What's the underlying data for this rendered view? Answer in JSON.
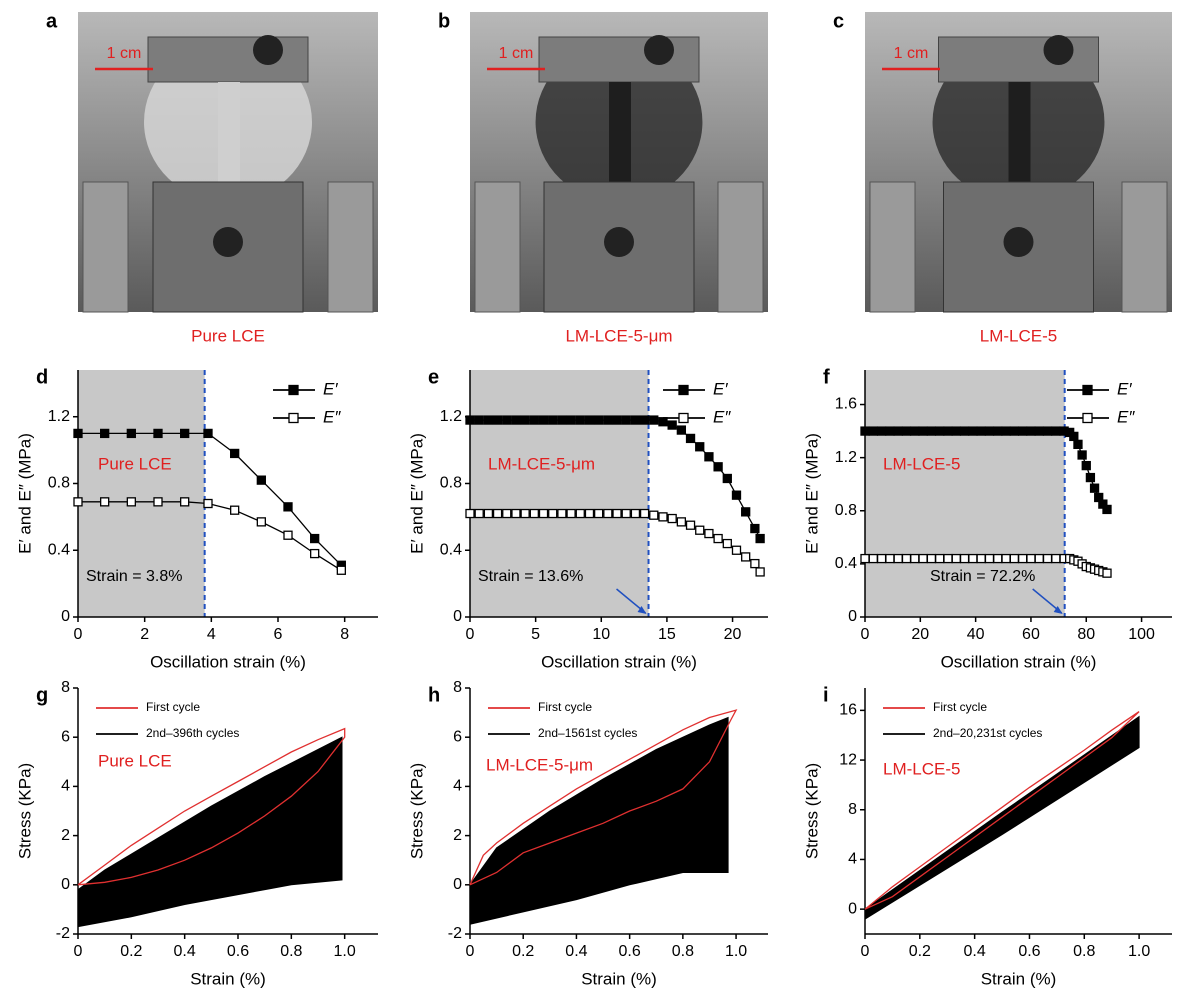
{
  "photos": [
    {
      "panel_label": "a",
      "scale_bar": "1 cm",
      "caption": "Pure LCE"
    },
    {
      "panel_label": "b",
      "scale_bar": "1 cm",
      "caption": "LM-LCE-5-μm"
    },
    {
      "panel_label": "c",
      "scale_bar": "1 cm",
      "caption": "LM-LCE-5"
    }
  ],
  "chart_data": [
    {
      "type": "line",
      "panel_label": "d",
      "xlabel": "Oscillation strain (%)",
      "ylabel": "E′ and E″ (MPa)",
      "xlim": [
        0,
        9
      ],
      "ylim": [
        0,
        1.48
      ],
      "xticks": [
        0,
        2,
        4,
        6,
        8
      ],
      "yticks": [
        0,
        0.4,
        0.8,
        1.2
      ],
      "threshold": 3.8,
      "sample_label": "Pure LCE",
      "strain_label": "Strain = 3.8%",
      "legend": "upper right",
      "series": [
        {
          "name": "E′",
          "color": "#000000",
          "marker": "filled",
          "x": [
            0,
            0.8,
            1.6,
            2.4,
            3.2,
            3.9,
            4.7,
            5.5,
            6.3,
            7.1,
            7.9
          ],
          "values": [
            1.1,
            1.1,
            1.1,
            1.1,
            1.1,
            1.1,
            0.98,
            0.82,
            0.66,
            0.47,
            0.31
          ]
        },
        {
          "name": "E″",
          "color": "#000000",
          "marker": "open",
          "x": [
            0,
            0.8,
            1.6,
            2.4,
            3.2,
            3.9,
            4.7,
            5.5,
            6.3,
            7.1,
            7.9
          ],
          "values": [
            0.69,
            0.69,
            0.69,
            0.69,
            0.69,
            0.68,
            0.64,
            0.57,
            0.49,
            0.38,
            0.28
          ]
        }
      ]
    },
    {
      "type": "line",
      "panel_label": "e",
      "xlabel": "Oscillation strain (%)",
      "ylabel": "E′ and E″ (MPa)",
      "xlim": [
        0,
        22.7
      ],
      "ylim": [
        0,
        1.48
      ],
      "xticks": [
        0,
        5,
        10,
        15,
        20
      ],
      "yticks": [
        0,
        0.4,
        0.8,
        1.2
      ],
      "threshold": 13.6,
      "sample_label": "LM-LCE-5-μm",
      "strain_label": "Strain = 13.6%",
      "legend": "upper right",
      "series": [
        {
          "name": "E′",
          "color": "#000000",
          "marker": "filled",
          "x": [
            0,
            0.7,
            1.4,
            2.1,
            2.8,
            3.5,
            4.2,
            4.9,
            5.6,
            6.3,
            7.0,
            7.7,
            8.4,
            9.1,
            9.8,
            10.5,
            11.2,
            11.9,
            12.6,
            13.3,
            14.0,
            14.7,
            15.4,
            16.1,
            16.8,
            17.5,
            18.2,
            18.9,
            19.6,
            20.3,
            21.0,
            21.7,
            22.1
          ],
          "values": [
            1.18,
            1.18,
            1.18,
            1.18,
            1.18,
            1.18,
            1.18,
            1.18,
            1.18,
            1.18,
            1.18,
            1.18,
            1.18,
            1.18,
            1.18,
            1.18,
            1.18,
            1.18,
            1.18,
            1.18,
            1.18,
            1.17,
            1.15,
            1.12,
            1.07,
            1.02,
            0.96,
            0.9,
            0.83,
            0.73,
            0.63,
            0.53,
            0.47
          ]
        },
        {
          "name": "E″",
          "color": "#000000",
          "marker": "open",
          "x": [
            0,
            0.7,
            1.4,
            2.1,
            2.8,
            3.5,
            4.2,
            4.9,
            5.6,
            6.3,
            7.0,
            7.7,
            8.4,
            9.1,
            9.8,
            10.5,
            11.2,
            11.9,
            12.6,
            13.3,
            14.0,
            14.7,
            15.4,
            16.1,
            16.8,
            17.5,
            18.2,
            18.9,
            19.6,
            20.3,
            21.0,
            21.7,
            22.1
          ],
          "values": [
            0.62,
            0.62,
            0.62,
            0.62,
            0.62,
            0.62,
            0.62,
            0.62,
            0.62,
            0.62,
            0.62,
            0.62,
            0.62,
            0.62,
            0.62,
            0.62,
            0.62,
            0.62,
            0.62,
            0.62,
            0.61,
            0.6,
            0.59,
            0.57,
            0.55,
            0.52,
            0.5,
            0.47,
            0.44,
            0.4,
            0.36,
            0.32,
            0.27
          ]
        }
      ]
    },
    {
      "type": "line",
      "panel_label": "f",
      "xlabel": "Oscillation strain (%)",
      "ylabel": "E′ and E″ (MPa)",
      "xlim": [
        0,
        111
      ],
      "ylim": [
        0,
        1.86
      ],
      "xticks": [
        0,
        20,
        40,
        60,
        80,
        100
      ],
      "yticks": [
        0,
        0.4,
        0.8,
        1.2,
        1.6
      ],
      "threshold": 72.2,
      "sample_label": "LM-LCE-5",
      "strain_label": "Strain = 72.2%",
      "legend": "upper right",
      "series": [
        {
          "name": "E′",
          "color": "#000000",
          "marker": "filled",
          "x": [
            0,
            3,
            6,
            9,
            12,
            15,
            18,
            21,
            24,
            27,
            30,
            33,
            36,
            39,
            42,
            45,
            48,
            51,
            54,
            57,
            60,
            63,
            66,
            69,
            72,
            74,
            75.5,
            77,
            78.5,
            80,
            81.5,
            83,
            84.5,
            86,
            87.5
          ],
          "values": [
            1.4,
            1.4,
            1.4,
            1.4,
            1.4,
            1.4,
            1.4,
            1.4,
            1.4,
            1.4,
            1.4,
            1.4,
            1.4,
            1.4,
            1.4,
            1.4,
            1.4,
            1.4,
            1.4,
            1.4,
            1.4,
            1.4,
            1.4,
            1.4,
            1.4,
            1.39,
            1.36,
            1.3,
            1.22,
            1.14,
            1.05,
            0.97,
            0.9,
            0.85,
            0.81
          ]
        },
        {
          "name": "E″",
          "color": "#000000",
          "marker": "open",
          "x": [
            0,
            3,
            6,
            9,
            12,
            15,
            18,
            21,
            24,
            27,
            30,
            33,
            36,
            39,
            42,
            45,
            48,
            51,
            54,
            57,
            60,
            63,
            66,
            69,
            72,
            74,
            75.5,
            77,
            78.5,
            80,
            81.5,
            83,
            84.5,
            86,
            87.5
          ],
          "values": [
            0.44,
            0.44,
            0.44,
            0.44,
            0.44,
            0.44,
            0.44,
            0.44,
            0.44,
            0.44,
            0.44,
            0.44,
            0.44,
            0.44,
            0.44,
            0.44,
            0.44,
            0.44,
            0.44,
            0.44,
            0.44,
            0.44,
            0.44,
            0.44,
            0.44,
            0.44,
            0.43,
            0.42,
            0.4,
            0.38,
            0.37,
            0.36,
            0.35,
            0.34,
            0.33
          ]
        }
      ]
    },
    {
      "type": "line",
      "panel_label": "g",
      "xlabel": "Strain (%)",
      "ylabel": "Stress (KPa)",
      "xlim": [
        0,
        1.125
      ],
      "ylim": [
        -2,
        8
      ],
      "xticks": [
        0,
        0.2,
        0.4,
        0.6,
        0.8,
        {
          "value": 1,
          "label": "1.0"
        }
      ],
      "yticks": [
        -2,
        0,
        2,
        4,
        6,
        8
      ],
      "sample_label": "Pure LCE",
      "legend": "upper left",
      "series": [
        {
          "name": "First cycle",
          "color": "#e03030",
          "x": [
            0,
            0.1,
            0.2,
            0.3,
            0.4,
            0.5,
            0.6,
            0.7,
            0.8,
            0.9,
            1.0,
            1.0,
            0.9,
            0.8,
            0.7,
            0.6,
            0.5,
            0.4,
            0.3,
            0.2,
            0.1,
            0
          ],
          "values": [
            0,
            0.8,
            1.6,
            2.3,
            3.0,
            3.6,
            4.2,
            4.8,
            5.4,
            5.9,
            6.35,
            6.0,
            4.6,
            3.6,
            2.8,
            2.1,
            1.5,
            1.0,
            0.6,
            0.3,
            0.1,
            0
          ]
        },
        {
          "name": "2nd–396th cycles",
          "color": "#000000",
          "fill": true,
          "x": [
            0,
            0.1,
            0.3,
            0.5,
            0.7,
            0.9,
            0.99,
            0.99,
            0.8,
            0.6,
            0.4,
            0.2,
            0
          ],
          "values": [
            -0.2,
            0.6,
            1.9,
            3.2,
            4.4,
            5.5,
            6.0,
            0.2,
            0,
            -0.4,
            -0.8,
            -1.3,
            -1.7
          ]
        }
      ]
    },
    {
      "type": "line",
      "panel_label": "h",
      "xlabel": "Strain (%)",
      "ylabel": "Stress (KPa)",
      "xlim": [
        0,
        1.12
      ],
      "ylim": [
        -2,
        8
      ],
      "xticks": [
        0,
        0.2,
        0.4,
        0.6,
        0.8,
        {
          "value": 1,
          "label": "1.0"
        }
      ],
      "yticks": [
        -2,
        0,
        2,
        4,
        6,
        8
      ],
      "sample_label": "LM-LCE-5-μm",
      "legend": "upper left",
      "series": [
        {
          "name": "First cycle",
          "color": "#e03030",
          "x": [
            0,
            0.05,
            0.1,
            0.2,
            0.3,
            0.4,
            0.5,
            0.6,
            0.7,
            0.8,
            0.9,
            1.0,
            0.98,
            0.9,
            0.8,
            0.7,
            0.6,
            0.5,
            0.4,
            0.3,
            0.2,
            0.1,
            0
          ],
          "values": [
            0,
            1.2,
            1.7,
            2.5,
            3.2,
            3.9,
            4.5,
            5.1,
            5.7,
            6.3,
            6.8,
            7.1,
            6.7,
            5.0,
            3.9,
            3.4,
            3.0,
            2.5,
            2.1,
            1.7,
            1.3,
            0.5,
            0
          ]
        },
        {
          "name": "2nd–1561st cycles",
          "color": "#000000",
          "fill": true,
          "x": [
            0,
            0.1,
            0.3,
            0.5,
            0.7,
            0.9,
            0.97,
            0.97,
            0.8,
            0.6,
            0.4,
            0.2,
            0
          ],
          "values": [
            0,
            1.5,
            3.0,
            4.3,
            5.5,
            6.5,
            6.8,
            0.5,
            0.5,
            0,
            -0.6,
            -1.1,
            -1.6
          ]
        }
      ]
    },
    {
      "type": "line",
      "panel_label": "i",
      "xlabel": "Strain (%)",
      "ylabel": "Stress (KPa)",
      "xlim": [
        0,
        1.12
      ],
      "ylim": [
        -2,
        17.8
      ],
      "xticks": [
        0,
        0.2,
        0.4,
        0.6,
        0.8,
        {
          "value": 1,
          "label": "1.0"
        }
      ],
      "yticks": [
        0,
        4,
        8,
        12,
        16
      ],
      "sample_label": "LM-LCE-5",
      "legend": "upper left",
      "series": [
        {
          "name": "First cycle",
          "color": "#e03030",
          "x": [
            0,
            0.1,
            0.2,
            0.3,
            0.4,
            0.5,
            0.6,
            0.7,
            0.8,
            0.9,
            1.0,
            0.9,
            0.8,
            0.7,
            0.6,
            0.5,
            0.4,
            0.3,
            0.2,
            0.1,
            0
          ],
          "values": [
            0,
            1.8,
            3.4,
            5.0,
            6.6,
            8.2,
            9.8,
            11.3,
            12.8,
            14.4,
            15.9,
            13.8,
            12.2,
            10.6,
            9.0,
            7.4,
            5.8,
            4.2,
            2.6,
            1.0,
            0
          ]
        },
        {
          "name": "2nd–20,231st cycles",
          "color": "#000000",
          "fill": true,
          "x": [
            0,
            0.5,
            1.0,
            1.0,
            0.5,
            0
          ],
          "values": [
            0,
            7.8,
            15.5,
            13.0,
            6.0,
            -0.8
          ]
        }
      ]
    }
  ]
}
